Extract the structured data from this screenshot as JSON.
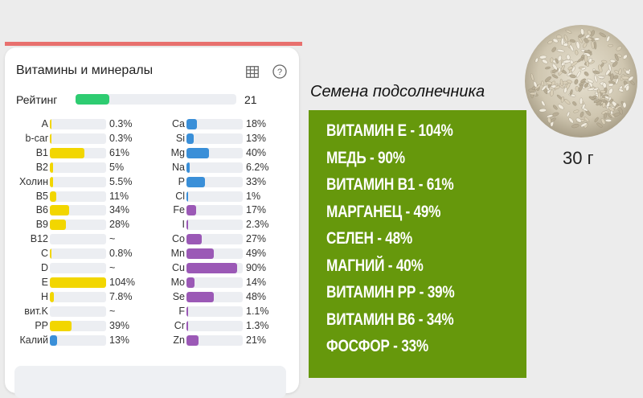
{
  "panel": {
    "title": "Витамины и минералы",
    "rating_label": "Рейтинг",
    "rating_value": "21",
    "rating_fraction": 0.21
  },
  "colors": {
    "vitamin": "#f2d600",
    "mineral_blue": "#3a8fd8",
    "mineral_purple": "#9b59b6",
    "rating": "#2ecc71",
    "green_box": "#66980c"
  },
  "left_nutrients": [
    {
      "name": "A",
      "pct": "0.3%",
      "frac": 0.003,
      "color": "#f2d600"
    },
    {
      "name": "b-car",
      "pct": "0.3%",
      "frac": 0.003,
      "color": "#f2d600"
    },
    {
      "name": "B1",
      "pct": "61%",
      "frac": 0.61,
      "color": "#f2d600"
    },
    {
      "name": "B2",
      "pct": "5%",
      "frac": 0.05,
      "color": "#f2d600"
    },
    {
      "name": "Холин",
      "pct": "5.5%",
      "frac": 0.055,
      "color": "#f2d600"
    },
    {
      "name": "B5",
      "pct": "11%",
      "frac": 0.11,
      "color": "#f2d600"
    },
    {
      "name": "B6",
      "pct": "34%",
      "frac": 0.34,
      "color": "#f2d600"
    },
    {
      "name": "B9",
      "pct": "28%",
      "frac": 0.28,
      "color": "#f2d600"
    },
    {
      "name": "B12",
      "pct": "~",
      "frac": 0,
      "color": "#f2d600"
    },
    {
      "name": "C",
      "pct": "0.8%",
      "frac": 0.008,
      "color": "#f2d600"
    },
    {
      "name": "D",
      "pct": "~",
      "frac": 0,
      "color": "#f2d600"
    },
    {
      "name": "E",
      "pct": "104%",
      "frac": 1.0,
      "color": "#f2d600"
    },
    {
      "name": "H",
      "pct": "7.8%",
      "frac": 0.078,
      "color": "#f2d600"
    },
    {
      "name": "вит.K",
      "pct": "~",
      "frac": 0,
      "color": "#f2d600"
    },
    {
      "name": "PP",
      "pct": "39%",
      "frac": 0.39,
      "color": "#f2d600"
    },
    {
      "name": "Калий",
      "pct": "13%",
      "frac": 0.13,
      "color": "#3a8fd8"
    }
  ],
  "right_nutrients": [
    {
      "name": "Ca",
      "pct": "18%",
      "frac": 0.18,
      "color": "#3a8fd8"
    },
    {
      "name": "Si",
      "pct": "13%",
      "frac": 0.13,
      "color": "#3a8fd8"
    },
    {
      "name": "Mg",
      "pct": "40%",
      "frac": 0.4,
      "color": "#3a8fd8"
    },
    {
      "name": "Na",
      "pct": "6.2%",
      "frac": 0.062,
      "color": "#3a8fd8"
    },
    {
      "name": "P",
      "pct": "33%",
      "frac": 0.33,
      "color": "#3a8fd8"
    },
    {
      "name": "Cl",
      "pct": "1%",
      "frac": 0.01,
      "color": "#3a8fd8"
    },
    {
      "name": "Fe",
      "pct": "17%",
      "frac": 0.17,
      "color": "#9b59b6"
    },
    {
      "name": "I",
      "pct": "2.3%",
      "frac": 0.023,
      "color": "#9b59b6"
    },
    {
      "name": "Co",
      "pct": "27%",
      "frac": 0.27,
      "color": "#9b59b6"
    },
    {
      "name": "Mn",
      "pct": "49%",
      "frac": 0.49,
      "color": "#9b59b6"
    },
    {
      "name": "Cu",
      "pct": "90%",
      "frac": 0.9,
      "color": "#9b59b6"
    },
    {
      "name": "Mo",
      "pct": "14%",
      "frac": 0.14,
      "color": "#9b59b6"
    },
    {
      "name": "Se",
      "pct": "48%",
      "frac": 0.48,
      "color": "#9b59b6"
    },
    {
      "name": "F",
      "pct": "1.1%",
      "frac": 0.011,
      "color": "#9b59b6"
    },
    {
      "name": "Cr",
      "pct": "1.3%",
      "frac": 0.013,
      "color": "#9b59b6"
    },
    {
      "name": "Zn",
      "pct": "21%",
      "frac": 0.21,
      "color": "#9b59b6"
    }
  ],
  "infographic": {
    "heading": "Семена подсолнечника",
    "lines": [
      "ВИТАМИН Е - 104%",
      "МЕДЬ - 90%",
      "ВИТАМИН В1 - 61%",
      "МАРГАНЕЦ - 49%",
      "СЕЛЕН - 48%",
      "МАГНИЙ - 40%",
      "ВИТАМИН РР - 39%",
      "ВИТАМИН В6 - 34%",
      "ФОСФОР - 33%"
    ],
    "portion": "30 г"
  },
  "icons": {
    "table": "table-icon",
    "help": "help-icon",
    "photo": "sunflower-seeds-photo"
  }
}
